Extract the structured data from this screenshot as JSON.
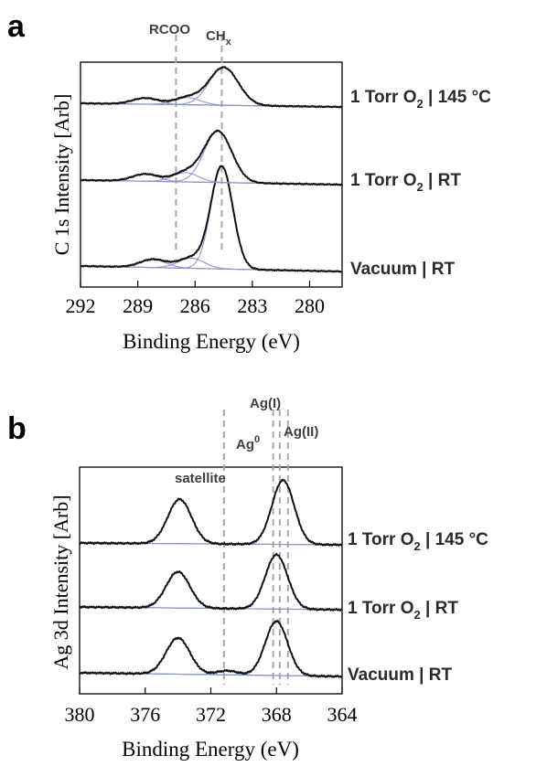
{
  "chart_data": [
    {
      "panel": "a",
      "type": "line",
      "xlabel": "Binding Energy (eV)",
      "ylabel": "C 1s Intensity [Arb]",
      "xlim": [
        292,
        278.3
      ],
      "x_reversed": true,
      "xticks": [
        292,
        289,
        286,
        283,
        280
      ],
      "reference_lines": [
        {
          "label": "RCOO",
          "x": 287.0
        },
        {
          "label": "CH",
          "sub": "x",
          "x": 284.6
        }
      ],
      "series": [
        {
          "name": "Vacuum | RT",
          "peaks": [
            {
              "center": 284.6,
              "height": 1.0,
              "fwhm": 1.35
            },
            {
              "center": 286.2,
              "height": 0.1,
              "fwhm": 1.6
            },
            {
              "center": 288.2,
              "height": 0.08,
              "fwhm": 1.6
            }
          ]
        },
        {
          "name": "1 Torr O2 | RT",
          "peaks": [
            {
              "center": 284.8,
              "height": 0.5,
              "fwhm": 1.7
            },
            {
              "center": 286.5,
              "height": 0.09,
              "fwhm": 1.6
            },
            {
              "center": 288.6,
              "height": 0.07,
              "fwhm": 1.6
            }
          ]
        },
        {
          "name": "1 Torr O2 | 145 °C",
          "peaks": [
            {
              "center": 284.5,
              "height": 0.37,
              "fwhm": 1.8
            },
            {
              "center": 286.4,
              "height": 0.07,
              "fwhm": 1.6
            },
            {
              "center": 288.6,
              "height": 0.06,
              "fwhm": 1.6
            }
          ]
        }
      ]
    },
    {
      "panel": "b",
      "type": "line",
      "xlabel": "Binding Energy (eV)",
      "ylabel": "Ag 3d Intensity [Arb]",
      "xlim": [
        380,
        364
      ],
      "x_reversed": true,
      "xticks": [
        380,
        376,
        372,
        368,
        364
      ],
      "reference_lines": [
        {
          "label": "satellite",
          "x": 371.2
        },
        {
          "label": "Ag",
          "sup": "0",
          "x": 368.2
        },
        {
          "label": "Ag(I)",
          "x": 367.8
        },
        {
          "label": "Ag(II)",
          "x": 367.3
        }
      ],
      "series": [
        {
          "name": "Vacuum | RT",
          "peaks": [
            {
              "center": 374.0,
              "height": 0.44,
              "fwhm": 1.7
            },
            {
              "center": 368.0,
              "height": 0.66,
              "fwhm": 1.6
            },
            {
              "center": 371.0,
              "height": 0.05,
              "fwhm": 1.5
            }
          ]
        },
        {
          "name": "1 Torr O2 | RT",
          "peaks": [
            {
              "center": 374.0,
              "height": 0.44,
              "fwhm": 1.7
            },
            {
              "center": 368.0,
              "height": 0.66,
              "fwhm": 1.6
            }
          ]
        },
        {
          "name": "1 Torr O2 | 145 °C",
          "peaks": [
            {
              "center": 373.9,
              "height": 0.54,
              "fwhm": 1.7
            },
            {
              "center": 367.6,
              "height": 0.78,
              "fwhm": 1.6
            }
          ]
        }
      ]
    }
  ],
  "labels": {
    "panel_a": "a",
    "panel_b": "b",
    "cond_a_145_prefix": "1 Torr O",
    "cond_a_145_sub": "2",
    "cond_a_145_suffix": " | 145 °C",
    "cond_a_rt_prefix": "1 Torr O",
    "cond_a_rt_sub": "2",
    "cond_a_rt_suffix": " | RT",
    "cond_a_vac": "Vacuum | RT",
    "cond_b_145_prefix": "1 Torr O",
    "cond_b_145_sub": "2",
    "cond_b_145_suffix": " | 145 °C",
    "cond_b_rt_prefix": "1 Torr O",
    "cond_b_rt_sub": "2",
    "cond_b_rt_suffix": " | RT",
    "cond_b_vac": "Vacuum | RT",
    "rcoo": "RCOO",
    "chx_main": "CH",
    "chx_sub": "x",
    "satellite": "satellite",
    "ag0_main": "Ag",
    "ag0_sup": "0",
    "ag1": "Ag(I)",
    "ag2": "Ag(II)"
  },
  "colors": {
    "data": "#111111",
    "fit_component": "#8f96cf",
    "background": "#9a9a9a",
    "reference_line": "#a8a8a8"
  }
}
